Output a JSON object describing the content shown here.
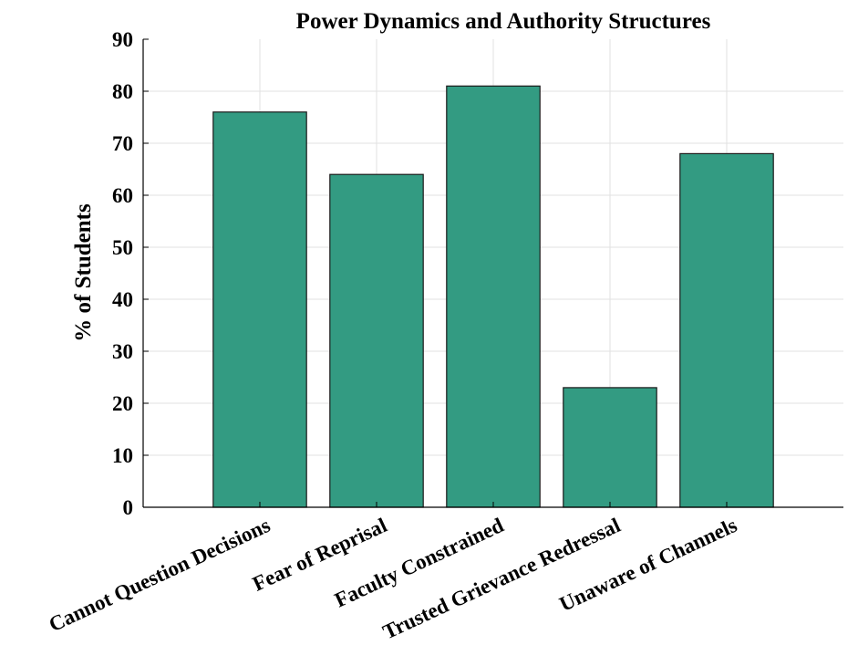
{
  "chart_data": {
    "type": "bar",
    "title": "Power Dynamics and Authority Structures",
    "xlabel": "",
    "ylabel": "% of Students",
    "categories": [
      "Cannot Question Decisions",
      "Fear of Reprisal",
      "Faculty Constrained",
      "Trusted Grievance Redressal",
      "Unaware of Channels"
    ],
    "values": [
      76,
      64,
      81,
      23,
      68
    ],
    "ylim": [
      0,
      90
    ],
    "yticks": [
      0,
      10,
      20,
      30,
      40,
      50,
      60,
      70,
      80,
      90
    ],
    "grid": true,
    "bar_color": "#339b82",
    "bar_edge_color": "#1a1a1a"
  }
}
